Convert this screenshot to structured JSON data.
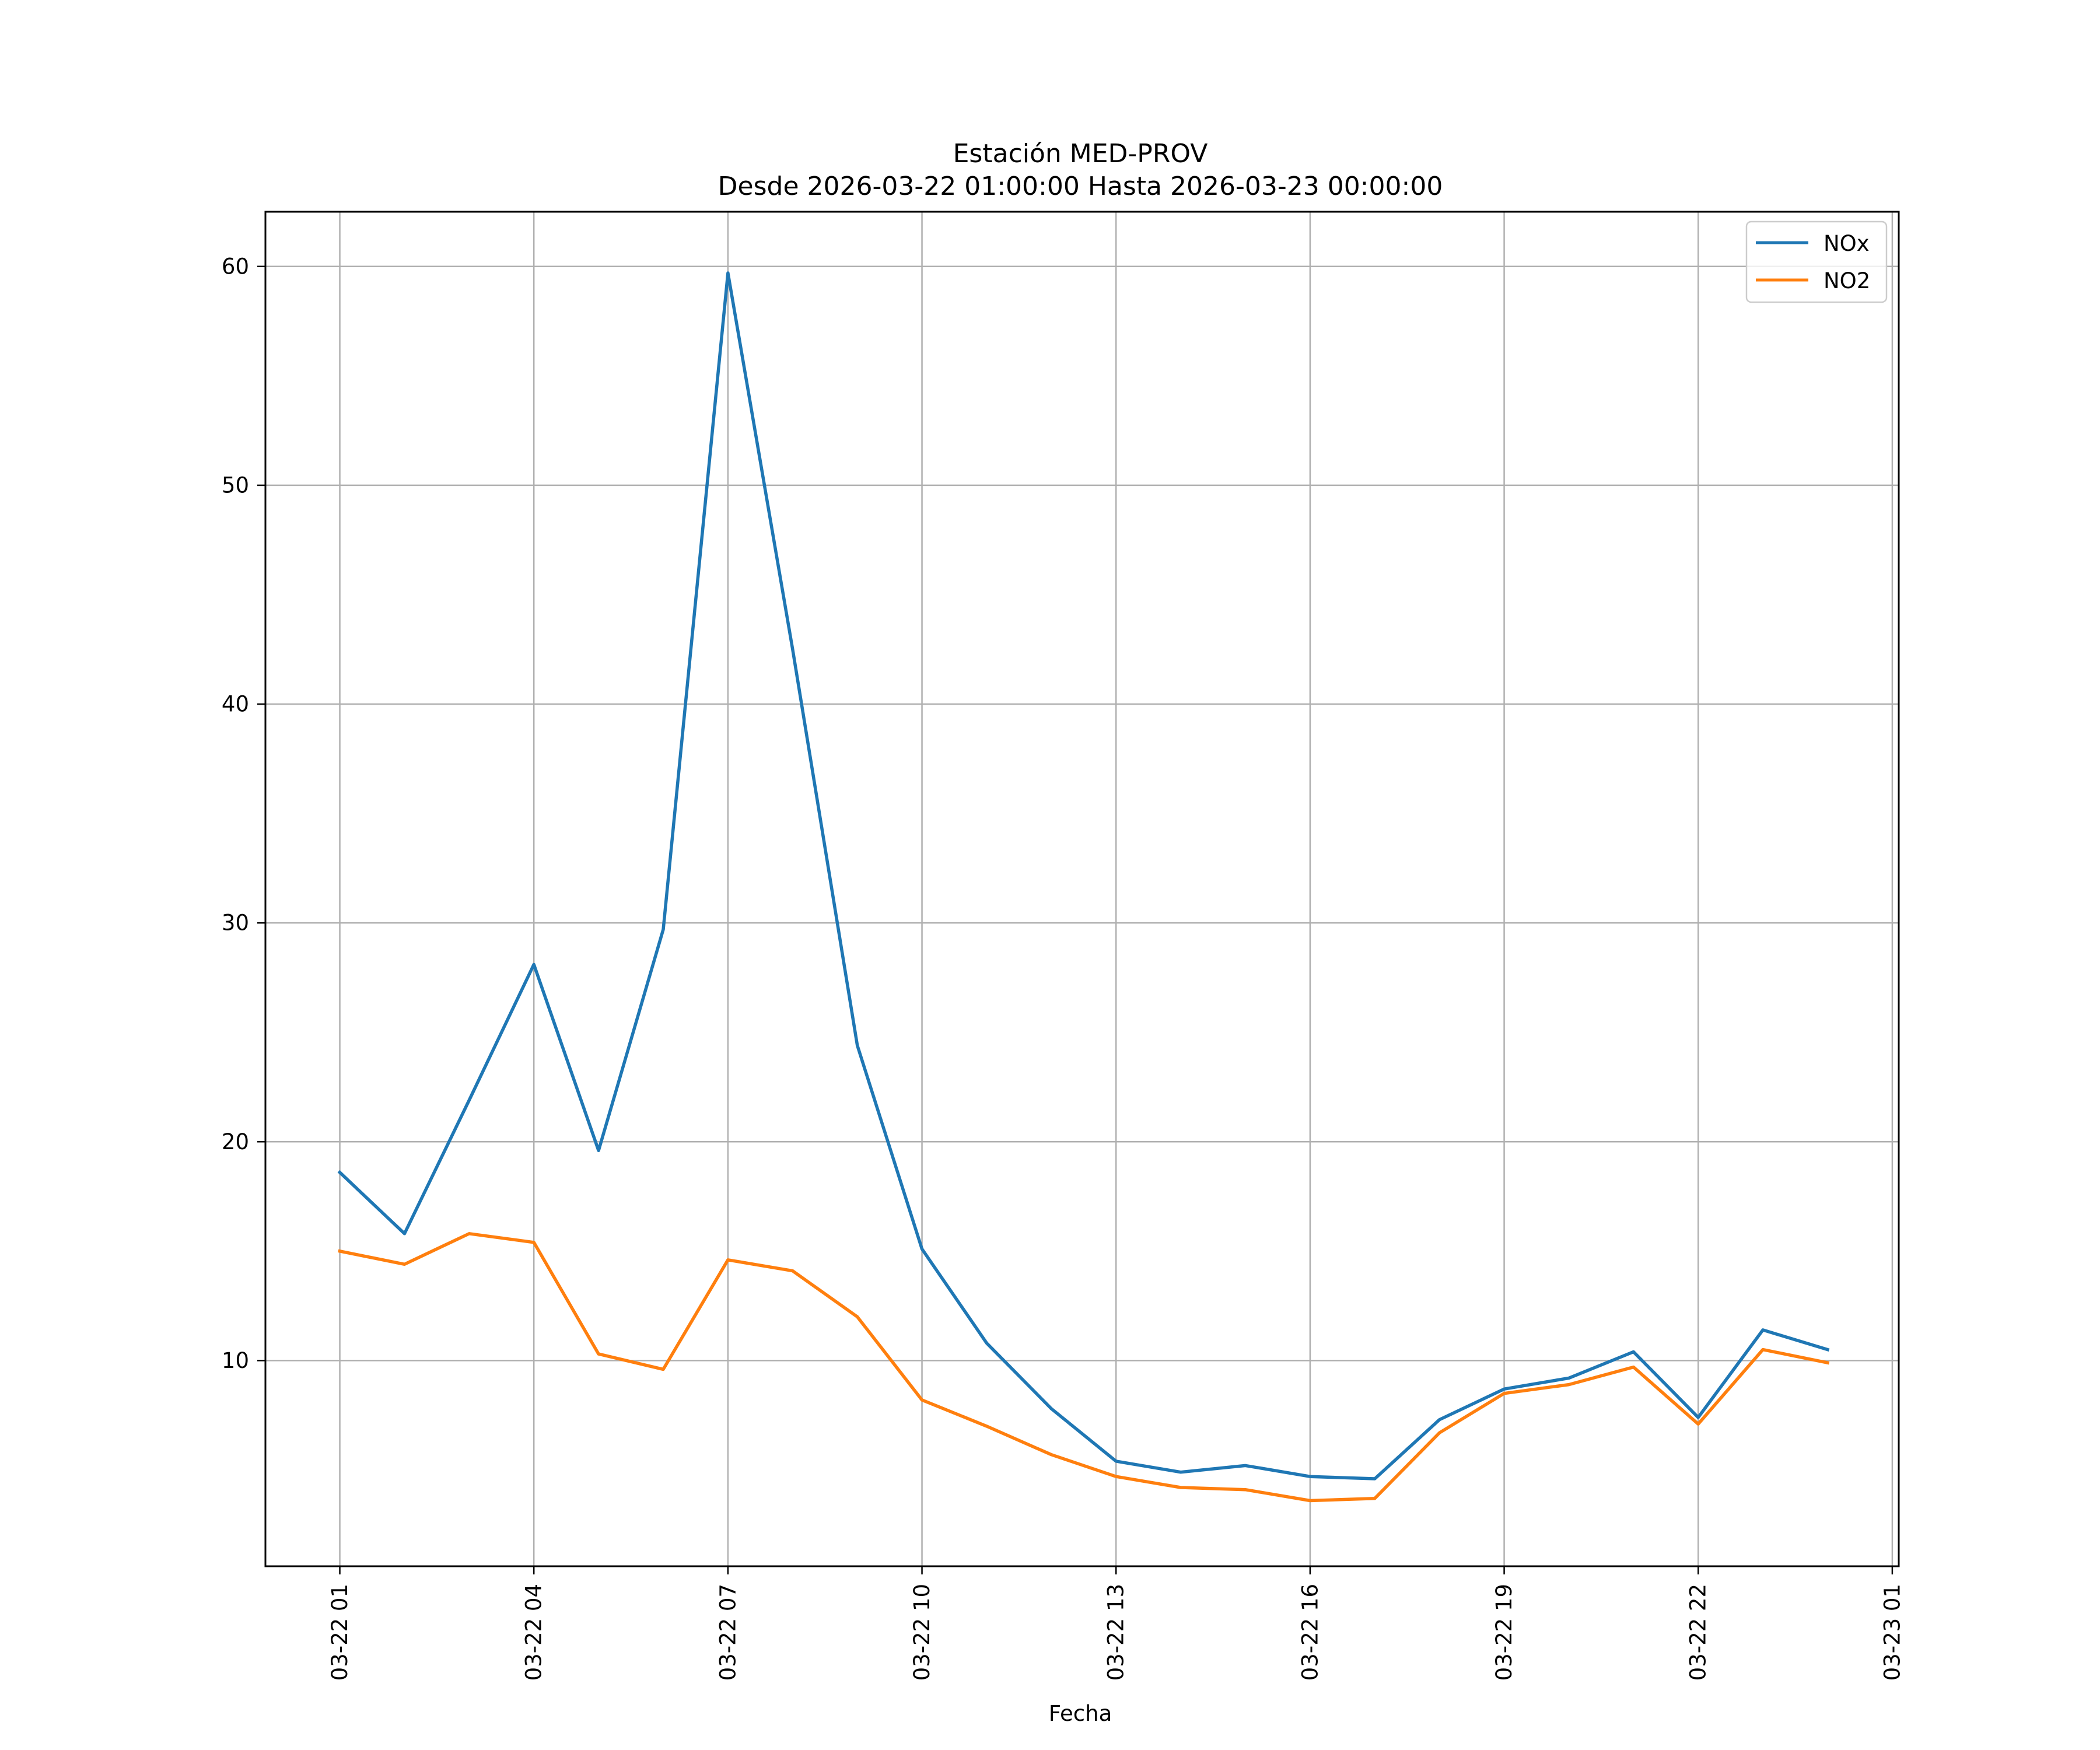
{
  "chart_data": {
    "type": "line",
    "title": "Estación MED-PROV",
    "subtitle": "Desde 2026-03-22 01:00:00 Hasta 2026-03-23 00:00:00",
    "xlabel": "Fecha",
    "ylabel": "",
    "x_hours": [
      1,
      2,
      3,
      4,
      5,
      6,
      7,
      8,
      9,
      10,
      11,
      12,
      13,
      14,
      15,
      16,
      17,
      18,
      19,
      20,
      21,
      22,
      23,
      24
    ],
    "xlim_hours": [
      -0.15,
      25.1
    ],
    "ylim": [
      0.6,
      62.5
    ],
    "x_ticks": [
      {
        "hour": 1,
        "label": "03-22 01"
      },
      {
        "hour": 4,
        "label": "03-22 04"
      },
      {
        "hour": 7,
        "label": "03-22 07"
      },
      {
        "hour": 10,
        "label": "03-22 10"
      },
      {
        "hour": 13,
        "label": "03-22 13"
      },
      {
        "hour": 16,
        "label": "03-22 16"
      },
      {
        "hour": 19,
        "label": "03-22 19"
      },
      {
        "hour": 22,
        "label": "03-22 22"
      },
      {
        "hour": 25,
        "label": "03-23 01"
      }
    ],
    "y_ticks": [
      {
        "value": 10,
        "label": "10"
      },
      {
        "value": 20,
        "label": "20"
      },
      {
        "value": 30,
        "label": "30"
      },
      {
        "value": 40,
        "label": "40"
      },
      {
        "value": 50,
        "label": "50"
      },
      {
        "value": 60,
        "label": "60"
      }
    ],
    "grid": true,
    "legend_position": "top-right",
    "series": [
      {
        "name": "NOx",
        "color": "#1f77b4",
        "values": [
          18.6,
          15.8,
          21.9,
          28.1,
          19.6,
          29.7,
          59.7,
          42.5,
          24.4,
          15.1,
          10.8,
          7.8,
          5.4,
          4.9,
          5.2,
          4.7,
          4.6,
          7.3,
          8.7,
          9.2,
          10.4,
          7.4,
          11.4,
          10.5
        ]
      },
      {
        "name": "NO2",
        "color": "#ff7f0e",
        "values": [
          15.0,
          14.4,
          15.8,
          15.4,
          10.3,
          9.6,
          14.6,
          14.1,
          12.0,
          8.2,
          7.0,
          5.7,
          4.7,
          4.2,
          4.1,
          3.6,
          3.7,
          6.7,
          8.5,
          8.9,
          9.7,
          7.1,
          10.5,
          9.9
        ]
      }
    ]
  }
}
